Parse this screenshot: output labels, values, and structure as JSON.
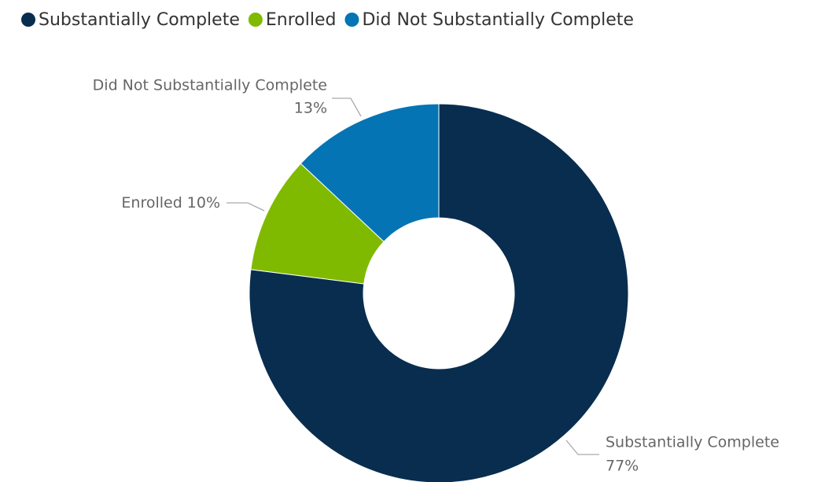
{
  "chart_data": {
    "type": "donut",
    "categories": [
      "Substantially Complete",
      "Enrolled",
      "Did Not Substantially Complete"
    ],
    "values": [
      77,
      10,
      13
    ],
    "value_labels": [
      "77%",
      "10%",
      "13%"
    ],
    "colors": [
      "#082d4f",
      "#7fba00",
      "#0474b4"
    ],
    "legend": "top-left"
  }
}
